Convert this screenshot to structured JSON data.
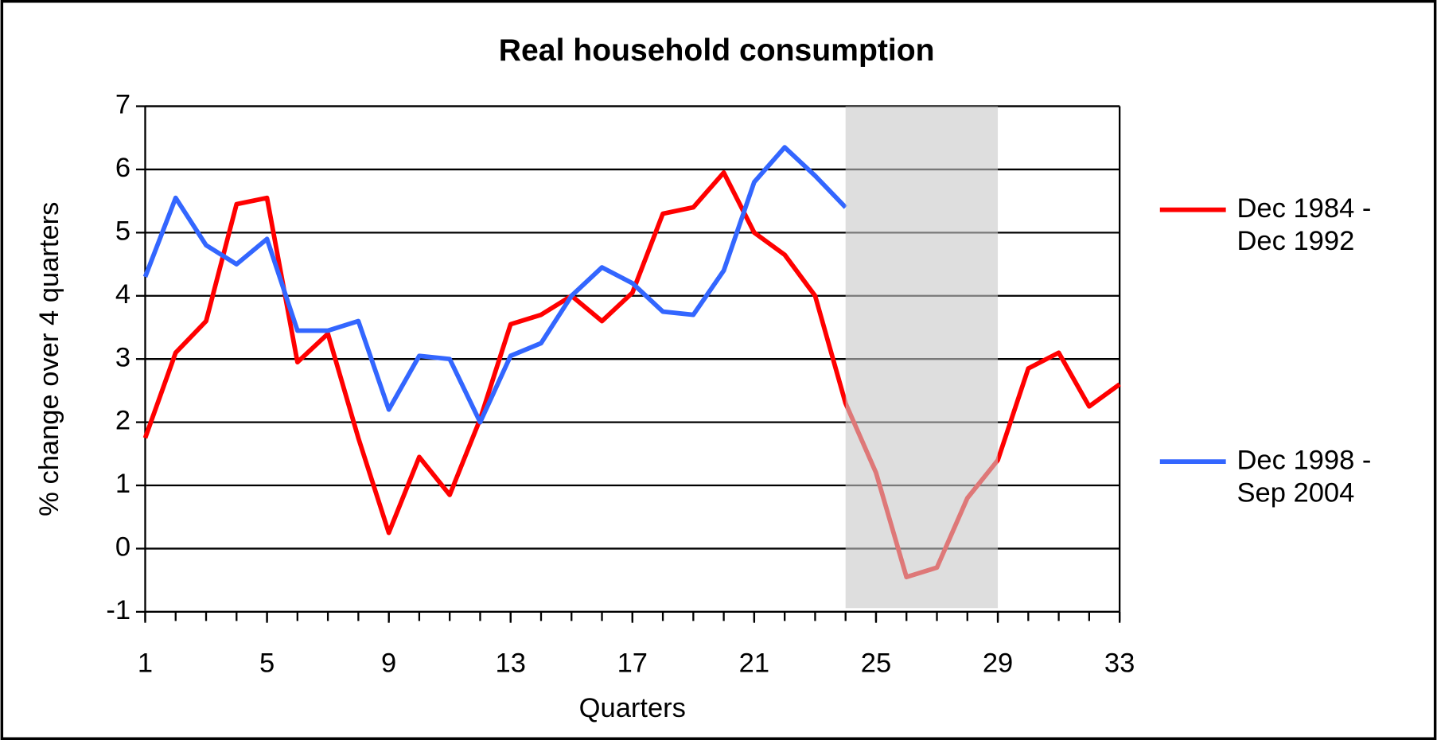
{
  "chart_data": {
    "type": "line",
    "title": "Real household consumption",
    "x_label": "Quarters",
    "y_label": "% change over 4 quarters",
    "x": [
      1,
      2,
      3,
      4,
      5,
      6,
      7,
      8,
      9,
      10,
      11,
      12,
      13,
      14,
      15,
      16,
      17,
      18,
      19,
      20,
      21,
      22,
      23,
      24,
      25,
      26,
      27,
      28,
      29,
      30,
      31,
      32,
      33
    ],
    "series": [
      {
        "name": "Dec 1984 - Dec 1992",
        "color": "#ff0000",
        "values": [
          1.75,
          3.1,
          3.6,
          5.45,
          5.55,
          2.95,
          3.4,
          1.75,
          0.25,
          1.45,
          0.85,
          2.05,
          3.55,
          3.7,
          4.0,
          3.6,
          4.05,
          5.3,
          5.4,
          5.95,
          5.0,
          4.65,
          4.0,
          2.3,
          1.2,
          -0.45,
          -0.3,
          0.8,
          1.4,
          2.85,
          3.1,
          2.25,
          2.6
        ]
      },
      {
        "name": "Dec 1998 - Sep 2004",
        "color": "#3366ff",
        "values": [
          4.3,
          5.55,
          4.8,
          4.5,
          4.9,
          3.45,
          3.45,
          3.6,
          2.2,
          3.05,
          3.0,
          2.0,
          3.05,
          3.25,
          4.0,
          4.45,
          4.2,
          3.75,
          3.7,
          4.4,
          5.8,
          6.35,
          5.9,
          5.4,
          null,
          null,
          null,
          null,
          null,
          null,
          null,
          null,
          null
        ]
      }
    ],
    "shaded_region": [
      24,
      29
    ],
    "xlim": [
      1,
      33
    ],
    "xticks": [
      1,
      5,
      9,
      13,
      17,
      21,
      25,
      29,
      33
    ],
    "ylim": [
      -1,
      7
    ],
    "yticks": [
      -1,
      0,
      1,
      2,
      3,
      4,
      5,
      6,
      7
    ],
    "grid": true,
    "legend": "right"
  }
}
